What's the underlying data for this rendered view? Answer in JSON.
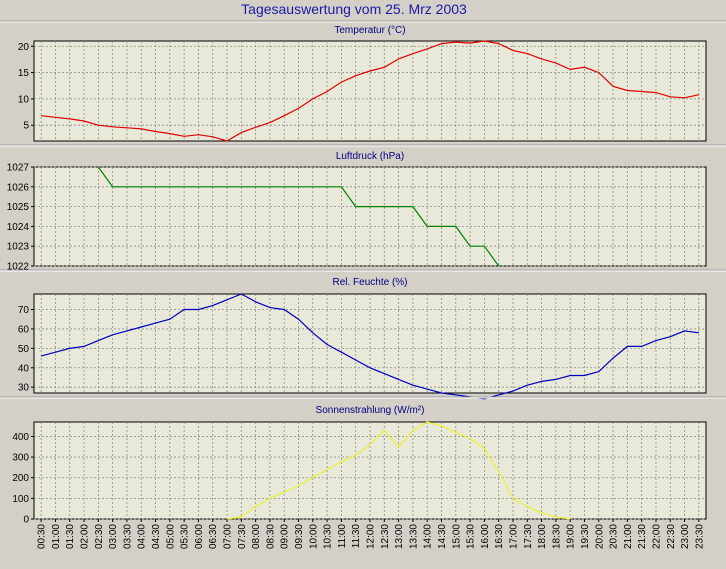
{
  "title": "Tagesauswertung vom 25. Mrz 2003",
  "colors": {
    "background": "#d4d0c8",
    "plot_background": "#e9e9d9",
    "grid": "#8a8a8a",
    "title": "#1a1aa8"
  },
  "x_categories": [
    "00:30",
    "01:00",
    "01:30",
    "02:00",
    "02:30",
    "03:00",
    "03:30",
    "04:00",
    "04:30",
    "05:00",
    "05:30",
    "06:00",
    "06:30",
    "07:00",
    "07:30",
    "08:00",
    "08:30",
    "09:00",
    "09:30",
    "10:00",
    "10:30",
    "11:00",
    "11:30",
    "12:00",
    "12:30",
    "13:00",
    "13:30",
    "14:00",
    "14:30",
    "15:00",
    "15:30",
    "16:00",
    "16:30",
    "17:00",
    "17:30",
    "18:00",
    "18:30",
    "19:00",
    "19:30",
    "20:00",
    "20:30",
    "21:00",
    "21:30",
    "22:00",
    "22:30",
    "23:00",
    "23:30"
  ],
  "chart_data": [
    {
      "type": "line",
      "title": "Temperatur (°C)",
      "color": "#e00000",
      "ylim": [
        2,
        21
      ],
      "yticks": [
        5,
        10,
        15,
        20
      ],
      "grid": true,
      "values": [
        6.8,
        6.5,
        6.2,
        5.8,
        5.0,
        4.7,
        4.5,
        4.3,
        3.8,
        3.4,
        2.9,
        3.2,
        2.8,
        2.0,
        3.6,
        4.6,
        5.5,
        6.8,
        8.2,
        10.0,
        11.4,
        13.2,
        14.4,
        15.3,
        16.0,
        17.6,
        18.6,
        19.5,
        20.5,
        20.8,
        20.6,
        21.0,
        20.5,
        19.2,
        18.6,
        17.6,
        16.8,
        15.6,
        16.0,
        15.0,
        12.4,
        11.6,
        11.4,
        11.2,
        10.4,
        10.2,
        10.8
      ]
    },
    {
      "type": "line",
      "title": "Luftdruck (hPa)",
      "color": "#008000",
      "ylim": [
        1022,
        1027
      ],
      "yticks": [
        1022,
        1023,
        1024,
        1025,
        1026,
        1027
      ],
      "grid": true,
      "values": [
        null,
        null,
        null,
        null,
        1027,
        1026,
        1026,
        1026,
        1026,
        1026,
        1026,
        1026,
        1026,
        1026,
        1026,
        1026,
        1026,
        1026,
        1026,
        1026,
        1026,
        1026,
        1025,
        1025,
        1025,
        1025,
        1025,
        1024,
        1024,
        1024,
        1023,
        1023,
        1022,
        null,
        null,
        null,
        null,
        null,
        null,
        null,
        null,
        null,
        null,
        null,
        null,
        null,
        null
      ]
    },
    {
      "type": "line",
      "title": "Rel. Feuchte (%)",
      "color": "#0000c0",
      "ylim": [
        27,
        78
      ],
      "yticks": [
        30,
        40,
        50,
        60,
        70
      ],
      "grid": true,
      "values": [
        46,
        48,
        50,
        51,
        54,
        57,
        59,
        61,
        63,
        65,
        70,
        70,
        72,
        75,
        78,
        74,
        71,
        70,
        65,
        58,
        52,
        48,
        44,
        40,
        37,
        34,
        31,
        29,
        27,
        26,
        25,
        24,
        26,
        28,
        31,
        33,
        34,
        36,
        36,
        38,
        45,
        51,
        51,
        54,
        56,
        59,
        58
      ]
    },
    {
      "type": "line",
      "title": "Sonnenstrahlung (W/m²)",
      "color": "#f0f030",
      "ylim": [
        0,
        470
      ],
      "yticks": [
        0,
        100,
        200,
        300,
        400
      ],
      "grid": true,
      "values": [
        null,
        null,
        null,
        null,
        null,
        null,
        null,
        null,
        null,
        null,
        null,
        null,
        null,
        0,
        10,
        60,
        100,
        130,
        160,
        200,
        240,
        275,
        310,
        360,
        430,
        350,
        430,
        470,
        450,
        420,
        390,
        340,
        230,
        100,
        60,
        30,
        10,
        0,
        null,
        null,
        null,
        null,
        null,
        null,
        null,
        null,
        null
      ]
    }
  ]
}
